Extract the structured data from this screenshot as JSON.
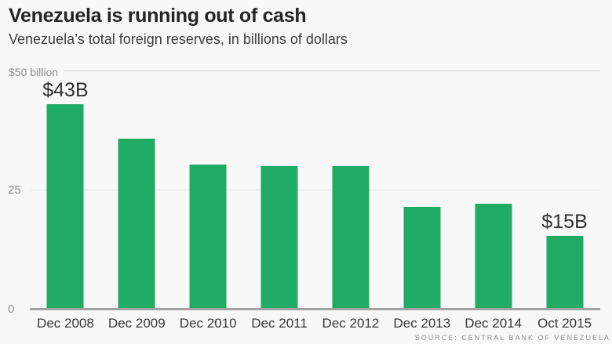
{
  "header": {
    "title": "Venezuela is running out of cash",
    "subtitle": "Venezuela’s total foreign reserves, in billions of dollars"
  },
  "chart_data": {
    "type": "bar",
    "title": "Venezuela is running out of cash",
    "subtitle": "Venezuela’s total foreign reserves, in billions of dollars",
    "categories": [
      "Dec 2008",
      "Dec 2009",
      "Dec 2010",
      "Dec 2011",
      "Dec 2012",
      "Dec 2013",
      "Dec 2014",
      "Oct 2015"
    ],
    "values": [
      43.0,
      35.8,
      30.3,
      29.9,
      29.9,
      21.4,
      22.1,
      15.2
    ],
    "annotations": [
      {
        "index": 0,
        "text": "$43B"
      },
      {
        "index": 7,
        "text": "$15B"
      }
    ],
    "yticks": [
      {
        "value": 50,
        "label": "$50 billion"
      },
      {
        "value": 25,
        "label": "25"
      },
      {
        "value": 0,
        "label": "0"
      }
    ],
    "ylim": [
      0,
      50
    ],
    "xlabel": "",
    "ylabel": "",
    "grid": true,
    "legend": "none",
    "bar_color": "#1fab63"
  },
  "colors": {
    "background": "#f8f8f8",
    "bar": "#1fab63",
    "title": "#242424",
    "subtitle": "#3d3d3d",
    "axis_labels": "#8d8d8d",
    "x_labels": "#383838",
    "gridline_top": "#cfd3d7",
    "gridline_mid": "#e6e9eb",
    "axis_line": "#a2a2a2",
    "annotation": "#2e2e2e",
    "source": "#8f8f8f"
  },
  "footer": {
    "source": "SOURCE: CENTRAL BANK OF VENEZUELA"
  }
}
